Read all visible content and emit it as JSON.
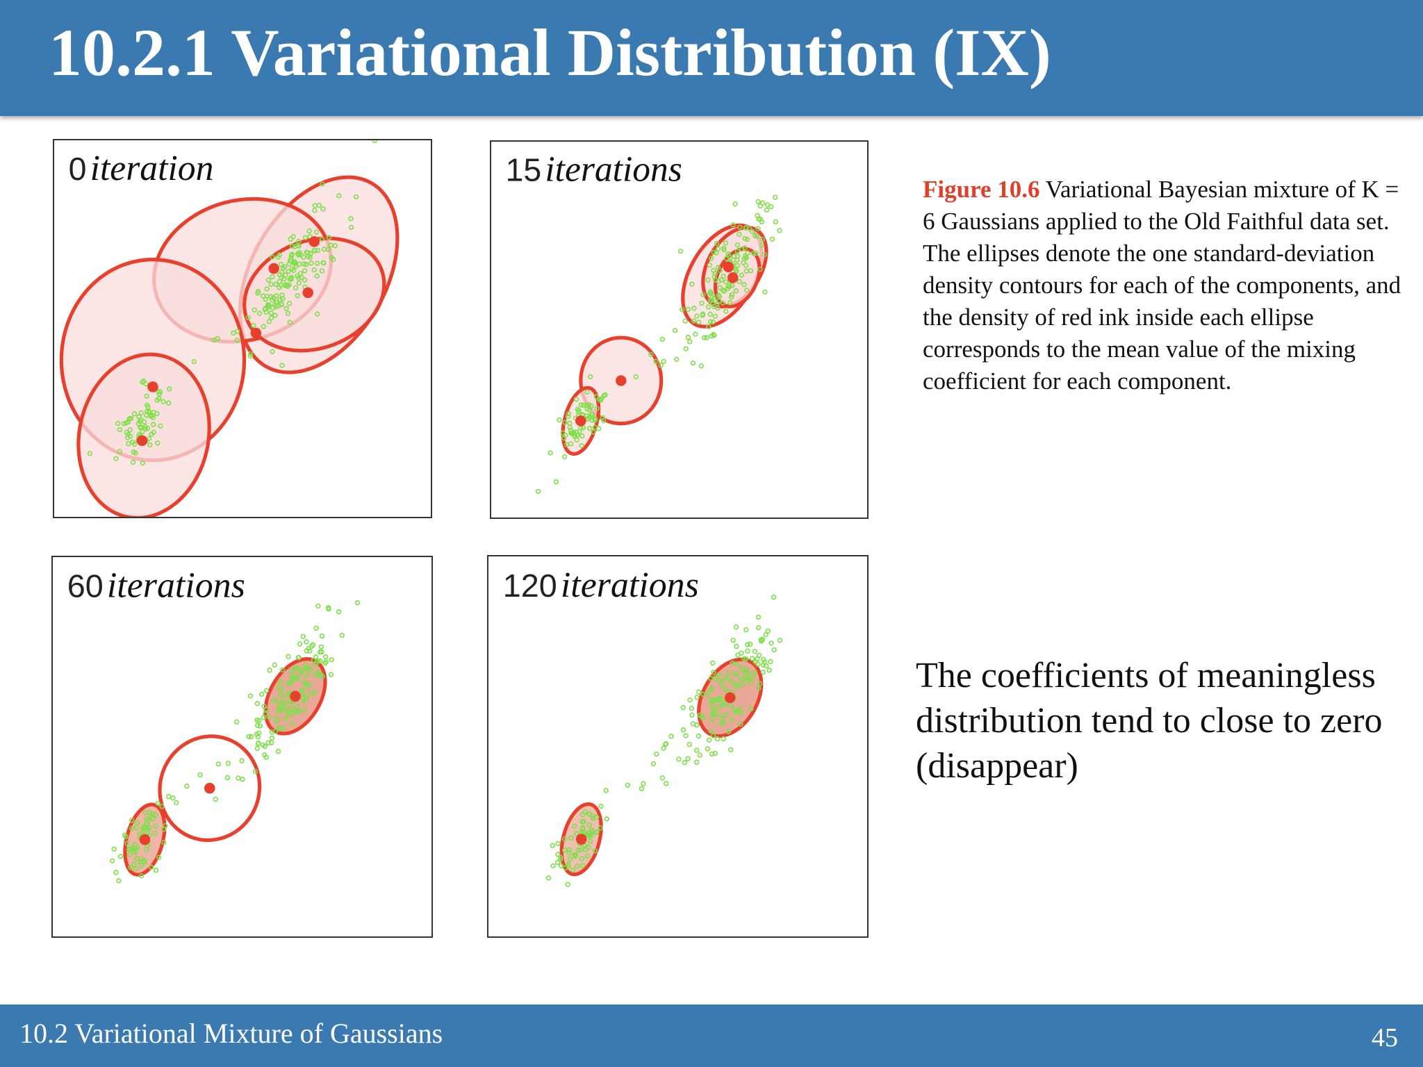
{
  "header": {
    "title": "10.2.1 Variational Distribution (IX)"
  },
  "panels": [
    {
      "number": "0",
      "label": "iteration"
    },
    {
      "number": "15",
      "label": "iterations"
    },
    {
      "number": "60",
      "label": "iterations"
    },
    {
      "number": "120",
      "label": "iterations"
    }
  ],
  "caption": {
    "figure": "Figure 10.6",
    "text": "Variational Bayesian mixture of K = 6 Gaussians applied to the Old Faithful data set. The ellipses denote the one standard-deviation density contours for each of the components, and the density of red ink inside each ellipse corresponds to the mean value of the mixing coefficient for each component."
  },
  "note": "The coefficients of meaningless distribution tend to close to zero (disappear)",
  "footer": {
    "section": "10.2 Variational Mixture of Gaussians",
    "page": "45"
  }
}
